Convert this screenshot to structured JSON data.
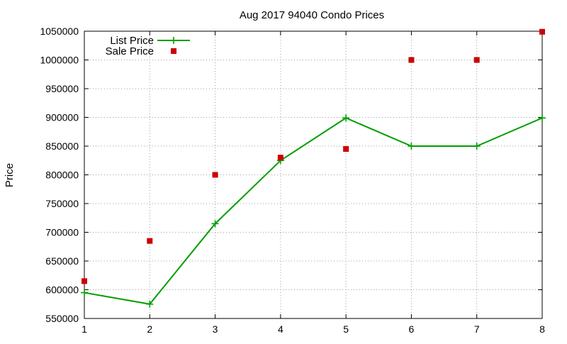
{
  "chart_data": {
    "type": "line",
    "title": "Aug 2017 94040 Condo Prices",
    "xlabel": "",
    "ylabel": "Price",
    "x": [
      1,
      2,
      3,
      4,
      5,
      6,
      7,
      8
    ],
    "xlim": [
      1,
      8
    ],
    "ylim": [
      550000,
      1050000
    ],
    "xticks": [
      "1",
      "2",
      "3",
      "4",
      "5",
      "6",
      "7",
      "8"
    ],
    "yticks": [
      "550000",
      "600000",
      "650000",
      "700000",
      "750000",
      "800000",
      "850000",
      "900000",
      "950000",
      "1000000",
      "1050000"
    ],
    "grid": true,
    "legend_position": "top-left",
    "series": [
      {
        "name": "List Price",
        "style": "linespoints",
        "marker": "plus",
        "color": "#009e00",
        "values": [
          595000,
          575000,
          715000,
          825000,
          899000,
          850000,
          850000,
          899000
        ]
      },
      {
        "name": "Sale Price",
        "style": "points",
        "marker": "square",
        "color": "#cc0000",
        "values": [
          615000,
          685000,
          800000,
          830000,
          845000,
          1000000,
          1000000,
          1049000
        ]
      }
    ]
  }
}
